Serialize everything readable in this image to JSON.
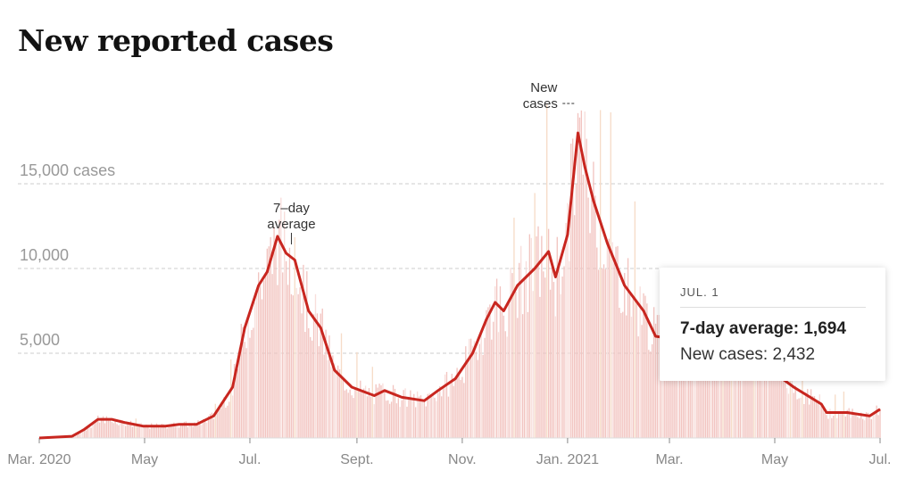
{
  "chart_data": {
    "type": "bar",
    "title": "New reported cases",
    "xlabel": "",
    "ylabel": "cases",
    "ylim": [
      0,
      20000
    ],
    "y_ticks": [
      {
        "value": 5000,
        "label": "5,000"
      },
      {
        "value": 10000,
        "label": "10,000"
      },
      {
        "value": 15000,
        "label": "15,000 cases"
      }
    ],
    "x_unit": "days since Mar. 1, 2020",
    "x_range": [
      0,
      487
    ],
    "x_ticks": [
      {
        "day": 0,
        "label": "Mar. 2020"
      },
      {
        "day": 61,
        "label": "May"
      },
      {
        "day": 122,
        "label": "Jul."
      },
      {
        "day": 184,
        "label": "Sept."
      },
      {
        "day": 245,
        "label": "Nov."
      },
      {
        "day": 306,
        "label": "Jan. 2021"
      },
      {
        "day": 365,
        "label": "Mar."
      },
      {
        "day": 426,
        "label": "May"
      },
      {
        "day": 487,
        "label": "Jul."
      }
    ],
    "series": [
      {
        "name": "7-day average",
        "color": "#c8261f",
        "type": "line",
        "points": [
          [
            0,
            0
          ],
          [
            19,
            100
          ],
          [
            26,
            500
          ],
          [
            34,
            1100
          ],
          [
            42,
            1100
          ],
          [
            50,
            900
          ],
          [
            60,
            700
          ],
          [
            73,
            700
          ],
          [
            81,
            800
          ],
          [
            91,
            800
          ],
          [
            101,
            1300
          ],
          [
            112,
            3000
          ],
          [
            119,
            6500
          ],
          [
            127,
            9000
          ],
          [
            132,
            9800
          ],
          [
            138,
            11900
          ],
          [
            143,
            10900
          ],
          [
            148,
            10500
          ],
          [
            156,
            7500
          ],
          [
            163,
            6500
          ],
          [
            171,
            4000
          ],
          [
            181,
            3000
          ],
          [
            194,
            2500
          ],
          [
            200,
            2800
          ],
          [
            210,
            2400
          ],
          [
            223,
            2200
          ],
          [
            231,
            2800
          ],
          [
            241,
            3500
          ],
          [
            251,
            5000
          ],
          [
            259,
            7000
          ],
          [
            264,
            8000
          ],
          [
            269,
            7500
          ],
          [
            277,
            9000
          ],
          [
            287,
            10000
          ],
          [
            295,
            11000
          ],
          [
            299,
            9500
          ],
          [
            306,
            12000
          ],
          [
            312,
            18000
          ],
          [
            316,
            16000
          ],
          [
            321,
            14000
          ],
          [
            329,
            11500
          ],
          [
            339,
            9000
          ],
          [
            350,
            7500
          ],
          [
            357,
            6000
          ],
          [
            370,
            5800
          ],
          [
            391,
            5500
          ],
          [
            417,
            4500
          ],
          [
            437,
            3000
          ],
          [
            453,
            2000
          ],
          [
            456,
            1500
          ],
          [
            468,
            1500
          ],
          [
            481,
            1300
          ],
          [
            484,
            1500
          ],
          [
            487,
            1694
          ]
        ]
      },
      {
        "name": "New cases",
        "color": "#f2c4c0",
        "type": "bar",
        "note": "daily values approximated around the 7-day average"
      }
    ],
    "annotations": [
      {
        "lines": [
          "7–day",
          "average"
        ],
        "day": 145
      },
      {
        "lines": [
          "New",
          "cases"
        ],
        "day": 300
      }
    ]
  },
  "tooltip": {
    "date": "JUL. 1",
    "avg_label": "7-day average: 1,694",
    "new_label": "New cases: 2,432"
  }
}
